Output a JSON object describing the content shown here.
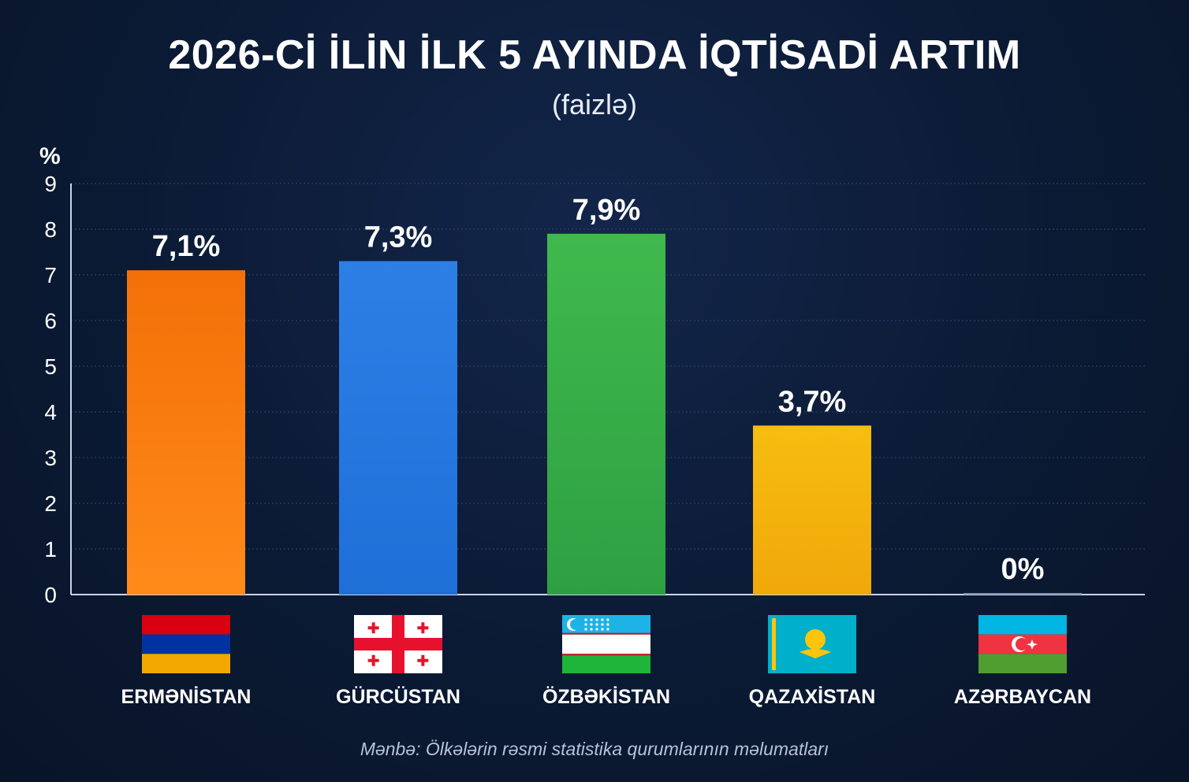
{
  "chart_data": {
    "type": "bar",
    "title": "2026-Cİ İLİN İLK 5 AYINDA İQTİSADİ ARTIM",
    "subtitle": "(faizlə)",
    "ylabel": "%",
    "ylim": [
      0,
      9
    ],
    "yticks": [
      "0",
      "1",
      "2",
      "3",
      "4",
      "5",
      "6",
      "7",
      "8",
      "9"
    ],
    "grid": true,
    "categories": [
      "ERMƏNİSTAN",
      "GÜRCÜSTAN",
      "ÖZBƏKİSTAN",
      "QAZAXİSTAN",
      "AZƏRBAYCAN"
    ],
    "values": [
      7.1,
      7.3,
      7.9,
      3.7,
      0
    ],
    "data_labels": [
      "7,1%",
      "7,3%",
      "7,9%",
      "3,7%",
      "0%"
    ],
    "colors": [
      "#f47a0c",
      "#2b7de0",
      "#3cb44a",
      "#f5b70a",
      "#8899b5"
    ],
    "flags": [
      "armenia-flag-icon",
      "georgia-flag-icon",
      "uzbekistan-flag-icon",
      "kazakhstan-flag-icon",
      "azerbaijan-flag-icon"
    ]
  },
  "source": "Mənbə: Ölkələrin rəsmi statistika qurumlarının məlumatları"
}
